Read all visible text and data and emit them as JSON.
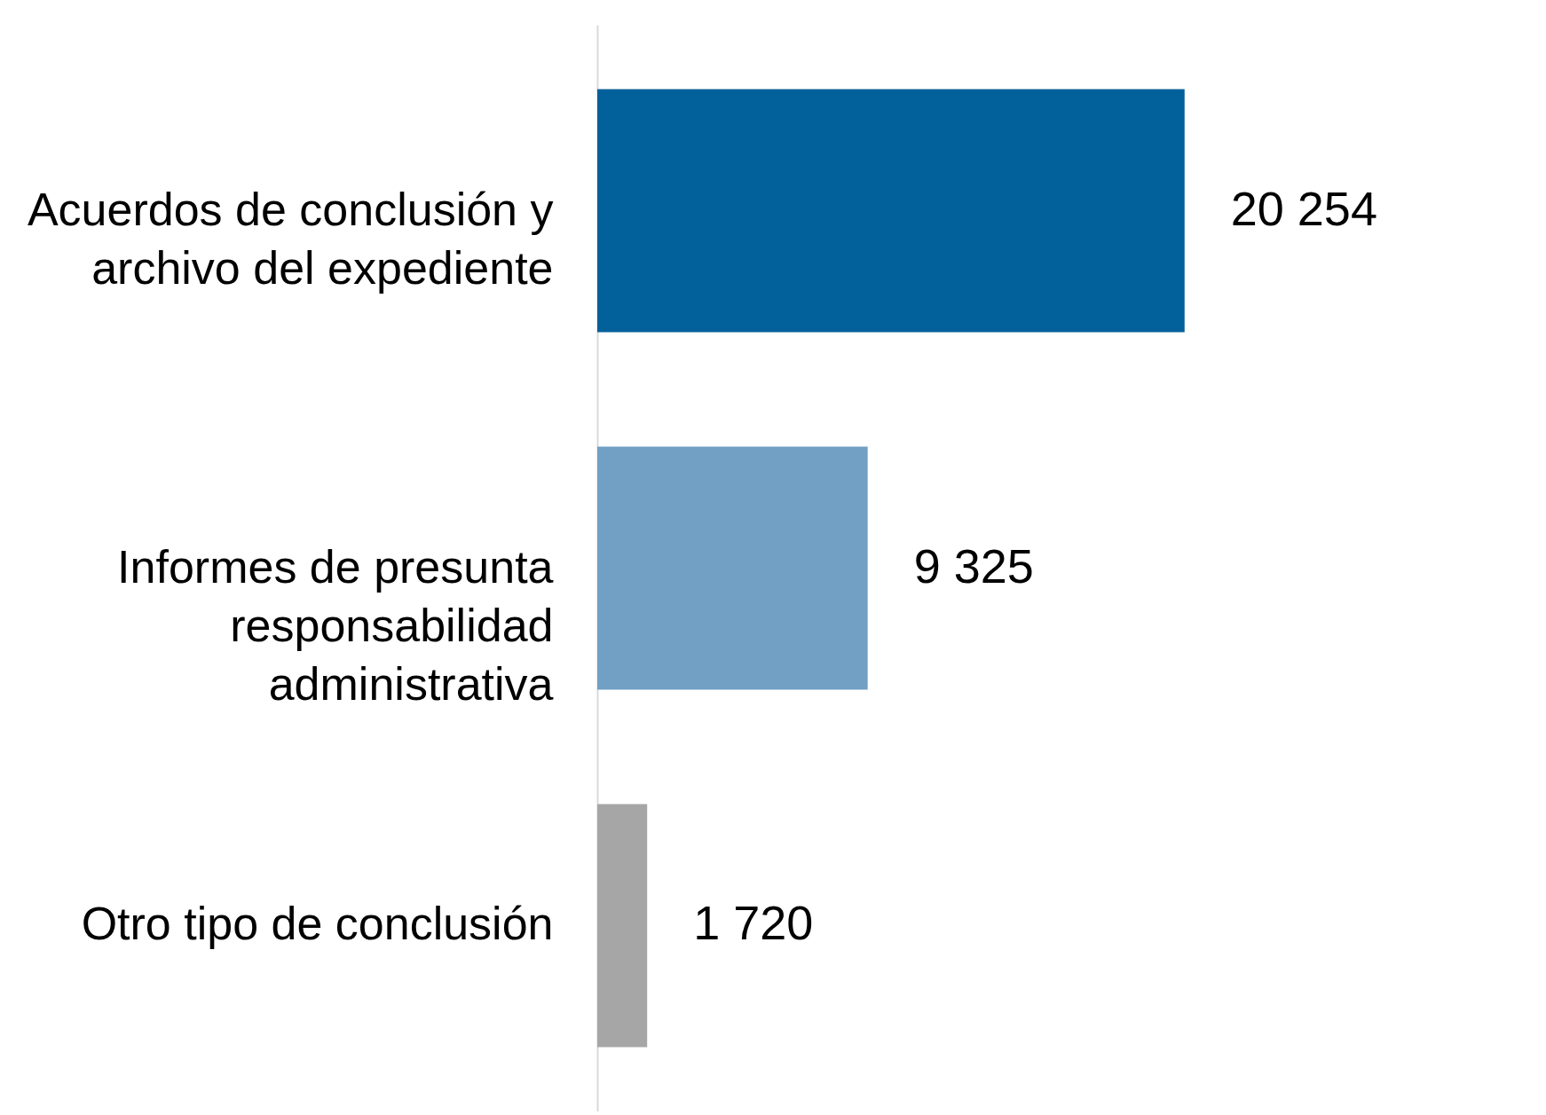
{
  "chart_data": {
    "type": "bar",
    "orientation": "horizontal",
    "categories": [
      "Acuerdos de conclusión y archivo del expediente",
      "Informes de presunta responsabilidad administrativa",
      "Otro tipo de conclusión"
    ],
    "values": [
      20254,
      9325,
      1720
    ],
    "colors": [
      "#02609a",
      "#729fc4",
      "#a6a6a6"
    ],
    "value_labels": [
      "20 254",
      "9 325",
      "1 720"
    ],
    "grid": false,
    "legend": false
  }
}
